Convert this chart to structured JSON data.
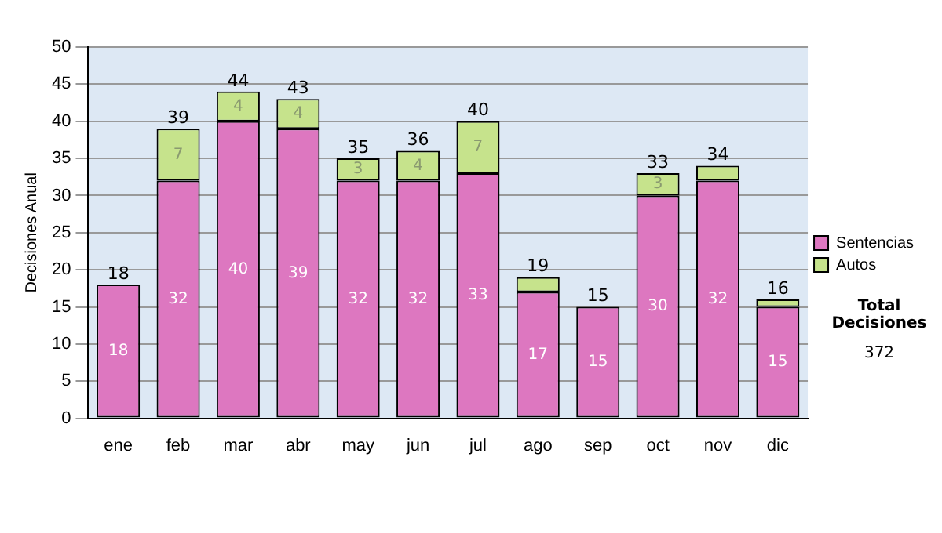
{
  "chart_data": {
    "type": "bar",
    "stacked": true,
    "ylabel": "Decisiones Anual",
    "categories": [
      "ene",
      "feb",
      "mar",
      "abr",
      "may",
      "jun",
      "jul",
      "ago",
      "sep",
      "oct",
      "nov",
      "dic"
    ],
    "series": [
      {
        "name": "Sentencias",
        "color": "#dd77c0",
        "values": [
          18,
          32,
          40,
          39,
          32,
          32,
          33,
          17,
          15,
          30,
          32,
          15
        ],
        "value_labels": [
          "18",
          "32",
          "40",
          "39",
          "32",
          "32",
          "33",
          "17",
          "15",
          "30",
          "32",
          "15"
        ]
      },
      {
        "name": "Autos",
        "color": "#c6e38c",
        "values": [
          0,
          7,
          4,
          4,
          3,
          4,
          7,
          2,
          0,
          3,
          2,
          1
        ],
        "value_labels": [
          null,
          "7",
          "4",
          "4",
          "3",
          "4",
          "7",
          null,
          null,
          "3",
          null,
          null
        ]
      }
    ],
    "totals": [
      "18",
      "39",
      "44",
      "43",
      "35",
      "36",
      "40",
      "19",
      "15",
      "33",
      "34",
      "16"
    ],
    "ylim": [
      0,
      50
    ],
    "yticks": [
      0,
      5,
      10,
      15,
      20,
      25,
      30,
      35,
      40,
      45,
      50
    ],
    "grid": "y",
    "legend": "right",
    "annotations": [
      "Total Decisiones",
      "372"
    ]
  }
}
